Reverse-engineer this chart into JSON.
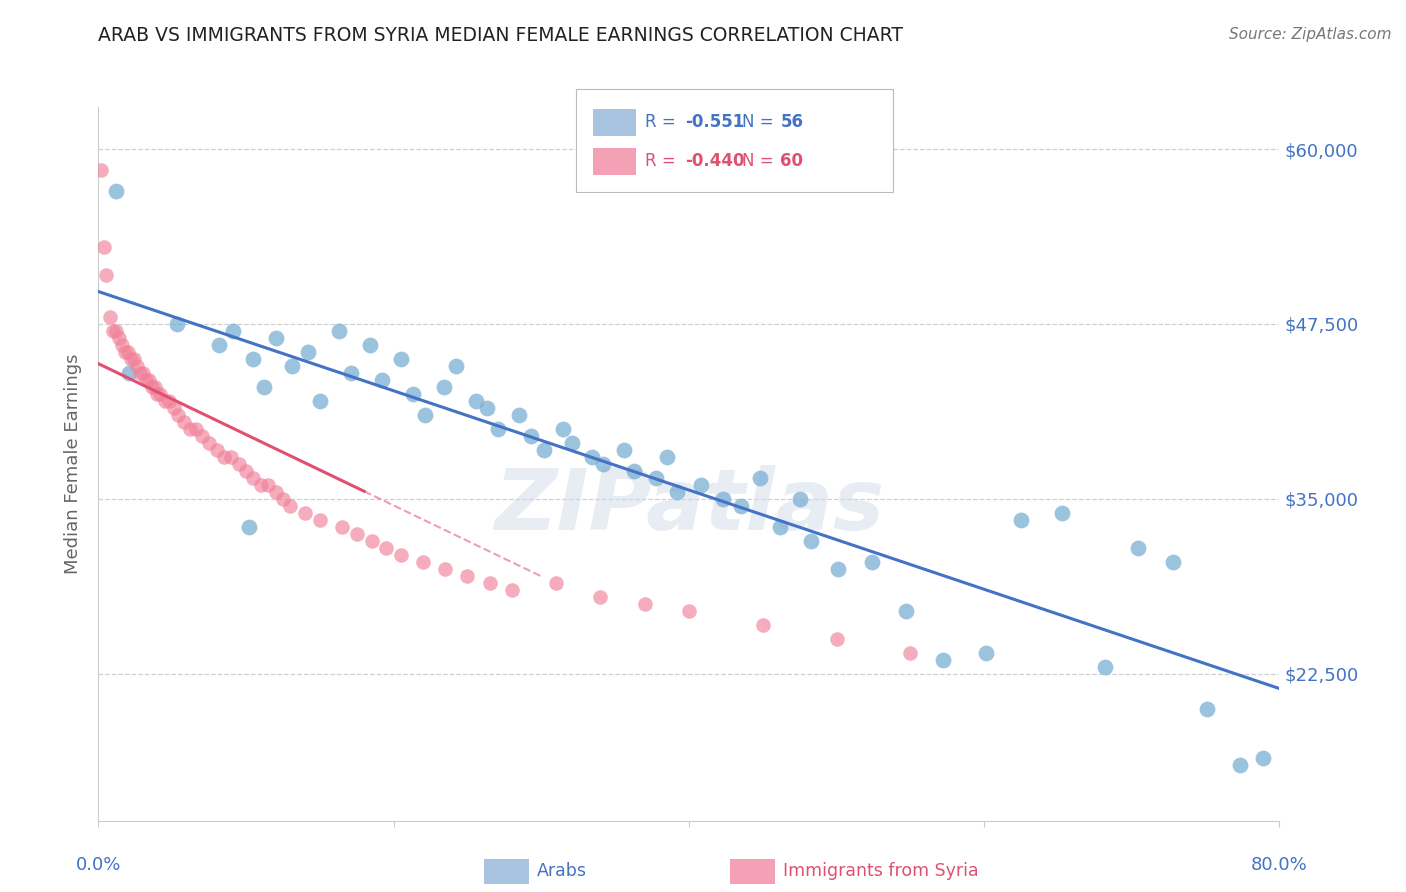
{
  "title": "ARAB VS IMMIGRANTS FROM SYRIA MEDIAN FEMALE EARNINGS CORRELATION CHART",
  "source": "Source: ZipAtlas.com",
  "ylabel": "Median Female Earnings",
  "xlim": [
    0.0,
    80.0
  ],
  "ylim": [
    12000,
    63000
  ],
  "watermark": "ZIPatlas",
  "arab_color": "#7bafd4",
  "syria_color": "#f08098",
  "arab_line_color": "#4472c4",
  "syria_line_color": "#e05070",
  "grid_color": "#d0d0d0",
  "background_color": "#ffffff",
  "ytick_vals": [
    22500,
    35000,
    47500,
    60000
  ],
  "ytick_labels": [
    "$22,500",
    "$35,000",
    "$47,500",
    "$60,000"
  ],
  "arab_R": "-0.551",
  "arab_N": "56",
  "syria_R": "-0.440",
  "syria_N": "60",
  "legend_blue_color": "#a8c4e0",
  "legend_pink_color": "#f4a0b5",
  "arab_label": "Arabs",
  "syria_label": "Immigrants from Syria",
  "arab_x": [
    1.2,
    2.1,
    5.3,
    8.2,
    9.1,
    10.5,
    11.2,
    12.0,
    13.1,
    14.2,
    15.0,
    16.3,
    17.1,
    18.4,
    19.2,
    20.5,
    21.3,
    22.1,
    23.4,
    24.2,
    25.6,
    26.3,
    27.1,
    28.5,
    29.3,
    30.2,
    31.5,
    32.1,
    33.4,
    34.2,
    35.6,
    36.3,
    37.8,
    38.5,
    39.2,
    40.8,
    42.3,
    43.5,
    44.8,
    46.2,
    47.5,
    48.3,
    50.1,
    52.4,
    54.7,
    57.2,
    60.1,
    62.5,
    65.3,
    68.2,
    70.4,
    72.8,
    75.1,
    77.3,
    78.9,
    10.2
  ],
  "arab_y": [
    57000,
    44000,
    47500,
    46000,
    47000,
    45000,
    43000,
    46500,
    44500,
    45500,
    42000,
    47000,
    44000,
    46000,
    43500,
    45000,
    42500,
    41000,
    43000,
    44500,
    42000,
    41500,
    40000,
    41000,
    39500,
    38500,
    40000,
    39000,
    38000,
    37500,
    38500,
    37000,
    36500,
    38000,
    35500,
    36000,
    35000,
    34500,
    36500,
    33000,
    35000,
    32000,
    30000,
    30500,
    27000,
    23500,
    24000,
    33500,
    34000,
    23000,
    31500,
    30500,
    20000,
    16000,
    16500,
    33000
  ],
  "syria_x": [
    0.2,
    0.4,
    0.5,
    0.8,
    1.0,
    1.2,
    1.4,
    1.6,
    1.8,
    2.0,
    2.2,
    2.4,
    2.6,
    2.8,
    3.0,
    3.2,
    3.4,
    3.6,
    3.8,
    4.0,
    4.2,
    4.5,
    4.8,
    5.1,
    5.4,
    5.8,
    6.2,
    6.6,
    7.0,
    7.5,
    8.0,
    8.5,
    9.0,
    9.5,
    10.0,
    10.5,
    11.0,
    11.5,
    12.0,
    12.5,
    13.0,
    14.0,
    15.0,
    16.5,
    17.5,
    18.5,
    19.5,
    20.5,
    22.0,
    23.5,
    25.0,
    26.5,
    28.0,
    31.0,
    34.0,
    37.0,
    40.0,
    45.0,
    50.0,
    55.0
  ],
  "syria_y": [
    58500,
    53000,
    51000,
    48000,
    47000,
    47000,
    46500,
    46000,
    45500,
    45500,
    45000,
    45000,
    44500,
    44000,
    44000,
    43500,
    43500,
    43000,
    43000,
    42500,
    42500,
    42000,
    42000,
    41500,
    41000,
    40500,
    40000,
    40000,
    39500,
    39000,
    38500,
    38000,
    38000,
    37500,
    37000,
    36500,
    36000,
    36000,
    35500,
    35000,
    34500,
    34000,
    33500,
    33000,
    32500,
    32000,
    31500,
    31000,
    30500,
    30000,
    29500,
    29000,
    28500,
    29000,
    28000,
    27500,
    27000,
    26000,
    25000,
    24000
  ],
  "syria_line_solid_end_x": 18.0,
  "syria_line_dash_end_x": 30.0
}
